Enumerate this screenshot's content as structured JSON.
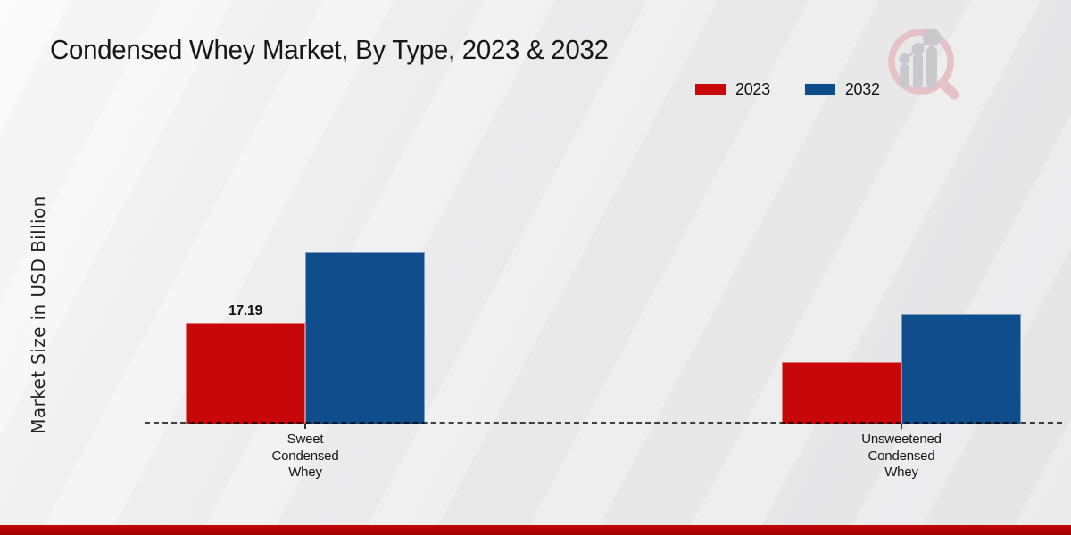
{
  "page": {
    "title": "Condensed Whey Market, By Type, 2023 & 2032"
  },
  "colors": {
    "series_2023": "#c80708",
    "series_2032": "#0f4d8c",
    "band_top": "#c40406",
    "band_bottom": "#9e0203",
    "background_light": "#fafafa",
    "background_dark": "#e7e7e8",
    "text": "#1a1a1a"
  },
  "watermark": {
    "icon": "magnifier-growth-chart-logo"
  },
  "chart_data": {
    "type": "bar",
    "title": "Condensed Whey Market, By Type, 2023 & 2032",
    "ylabel": "Market Size in USD Billion",
    "xlabel": "",
    "categories": [
      [
        "Sweet",
        "Condensed",
        "Whey"
      ],
      [
        "Unsweetened",
        "Condensed",
        "Whey"
      ]
    ],
    "category_slugs": [
      "sweet-condensed-whey",
      "unsweetened-condensed-whey"
    ],
    "series": [
      {
        "name": "2023",
        "color": "#c80708",
        "values": [
          17.19,
          10.5
        ]
      },
      {
        "name": "2032",
        "color": "#0f4d8c",
        "values": [
          29.2,
          18.7
        ]
      }
    ],
    "value_labels": [
      {
        "series_index": 0,
        "category_index": 0,
        "text": "17.19"
      }
    ],
    "ylim": [
      0,
      30
    ],
    "grid": false,
    "legend_position": "top-right",
    "baseline_style": "dashed"
  }
}
